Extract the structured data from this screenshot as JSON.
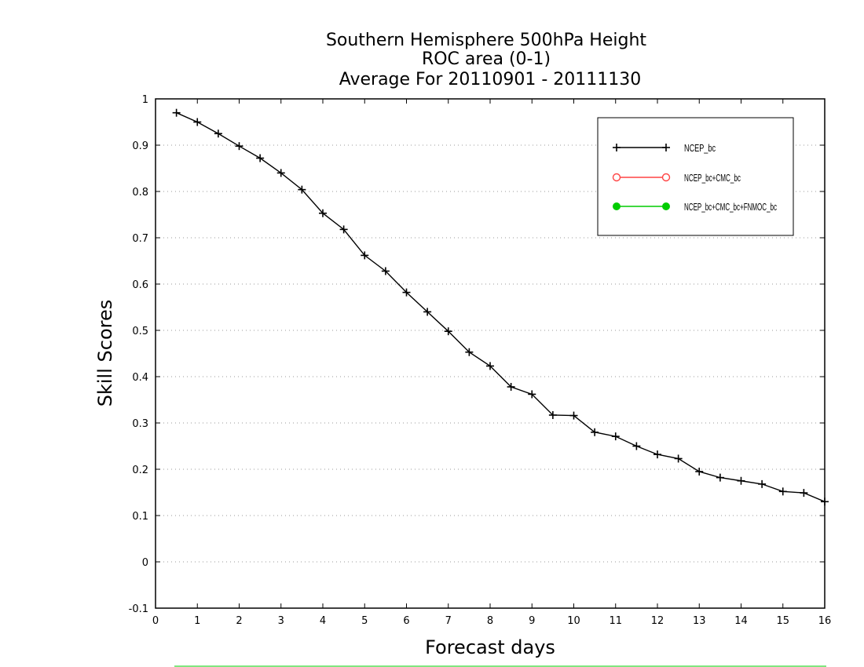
{
  "chart_data": {
    "type": "line",
    "title": [
      "Southern Hemisphere 500hPa Height",
      "ROC area (0-1)",
      "Average For 20110901 - 20111130"
    ],
    "xlabel": "Forecast days",
    "ylabel": "Skill Scores",
    "xlim": [
      0,
      16
    ],
    "ylim": [
      -0.1,
      1
    ],
    "xticks": [
      "0",
      "1",
      "2",
      "3",
      "4",
      "5",
      "6",
      "7",
      "8",
      "9",
      "10",
      "11",
      "12",
      "13",
      "14",
      "15",
      "16"
    ],
    "yticks": [
      "-0.1",
      "0",
      "0.1",
      "0.2",
      "0.3",
      "0.4",
      "0.5",
      "0.6",
      "0.7",
      "0.8",
      "0.9",
      "1"
    ],
    "grid": "horizontal dotted",
    "legend_position": "top-right",
    "series": [
      {
        "name": "NCEP_bc",
        "color": "#000000",
        "marker": "plus",
        "x": [
          0.5,
          1,
          1.5,
          2,
          2.5,
          3,
          3.5,
          4,
          4.5,
          5,
          5.5,
          6,
          6.5,
          7,
          7.5,
          8,
          8.5,
          9,
          9.5,
          10,
          10.5,
          11,
          11.5,
          12,
          12.5,
          13,
          13.5,
          14,
          14.5,
          15,
          15.5,
          16
        ],
        "values": [
          0.97,
          0.95,
          0.925,
          0.898,
          0.872,
          0.84,
          0.804,
          0.753,
          0.718,
          0.662,
          0.628,
          0.582,
          0.54,
          0.498,
          0.453,
          0.423,
          0.378,
          0.362,
          0.317,
          0.316,
          0.28,
          0.271,
          0.25,
          0.232,
          0.223,
          0.195,
          0.182,
          0.175,
          0.168,
          0.152,
          0.149,
          0.13
        ]
      },
      {
        "name": "NCEP_bc+CMC_bc",
        "color": "#ff4444",
        "marker": "open-circle",
        "x": [],
        "values": []
      },
      {
        "name": "NCEP_bc+CMC_bc+FNMOC_bc",
        "color": "#00cc00",
        "marker": "filled-circle",
        "x": [],
        "values": []
      }
    ]
  }
}
